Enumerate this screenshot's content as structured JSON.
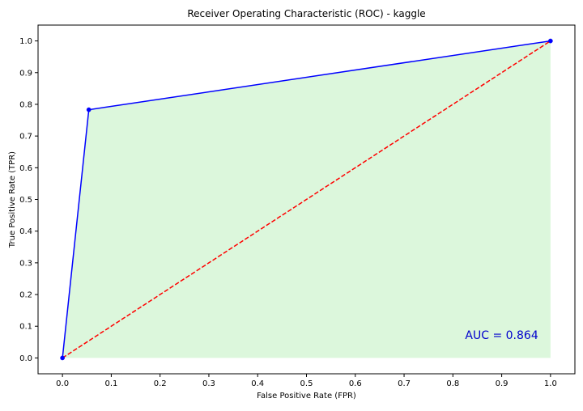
{
  "chart_data": {
    "type": "line",
    "title": "Receiver Operating Characteristic (ROC) - kaggle",
    "xlabel": "False Positive Rate (FPR)",
    "ylabel": "True Positive Rate (TPR)",
    "xlim": [
      -0.05,
      1.05
    ],
    "ylim": [
      -0.05,
      1.05
    ],
    "xticks": [
      0.0,
      0.1,
      0.2,
      0.3,
      0.4,
      0.5,
      0.6,
      0.7,
      0.8,
      0.9,
      1.0
    ],
    "yticks": [
      0.0,
      0.1,
      0.2,
      0.3,
      0.4,
      0.5,
      0.6,
      0.7,
      0.8,
      0.9,
      1.0
    ],
    "xtick_labels": [
      "0.0",
      "0.1",
      "0.2",
      "0.3",
      "0.4",
      "0.5",
      "0.6",
      "0.7",
      "0.8",
      "0.9",
      "1.0"
    ],
    "ytick_labels": [
      "0.0",
      "0.1",
      "0.2",
      "0.3",
      "0.4",
      "0.5",
      "0.6",
      "0.7",
      "0.8",
      "0.9",
      "1.0"
    ],
    "grid": false,
    "series": [
      {
        "x": [
          0.0,
          0.054,
          1.0
        ],
        "y": [
          0.0,
          0.783,
          1.0
        ],
        "color": "#0000ff",
        "style": "solid",
        "markers": true,
        "marker_color": "#0000ff",
        "fill_under": true,
        "fill_color": "#dcf7dc"
      },
      {
        "x": [
          0.0,
          1.0
        ],
        "y": [
          0.0,
          1.0
        ],
        "color": "#ff0000",
        "style": "dashed",
        "markers": false
      }
    ],
    "annotations": [
      {
        "text": "AUC = 0.864",
        "x": 0.9,
        "y": 0.06,
        "color": "#0000cd"
      }
    ]
  }
}
